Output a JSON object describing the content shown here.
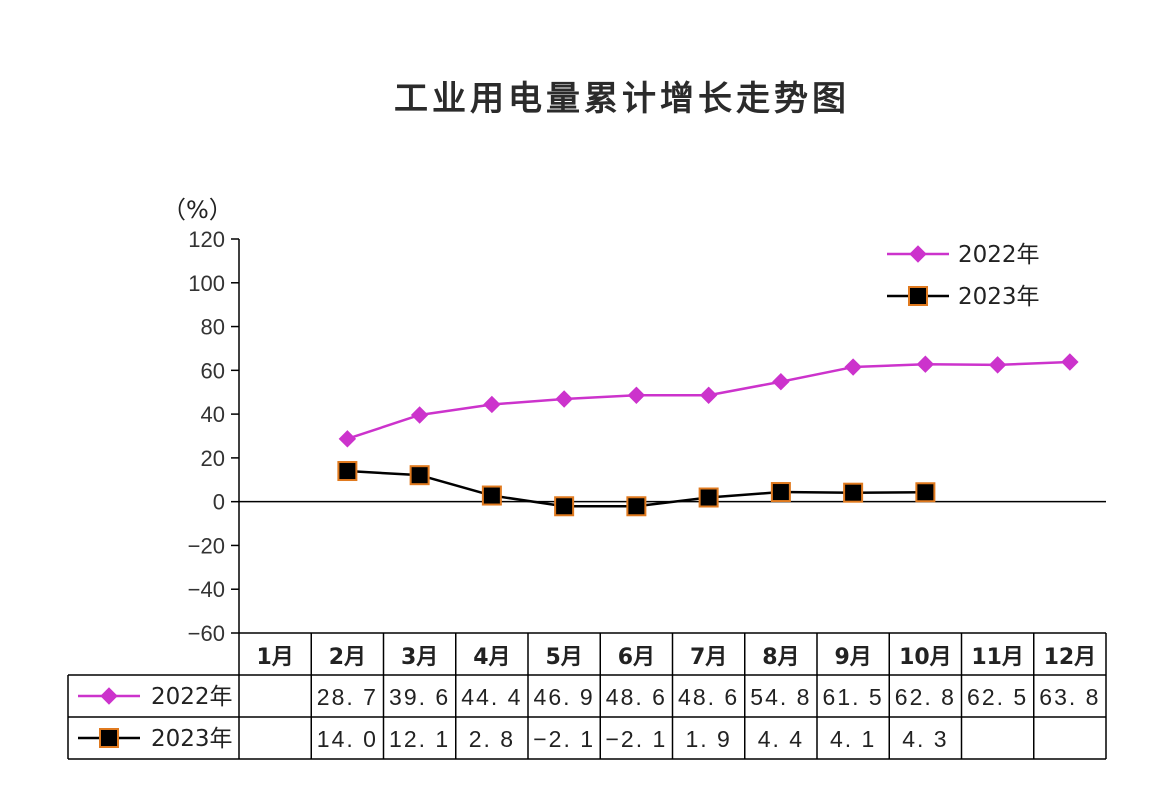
{
  "chart_data": {
    "type": "line",
    "title": "工业用电量累计增长走势图",
    "ylabel": "（%）",
    "ylim": [
      -60,
      120
    ],
    "yticks": [
      120,
      100,
      80,
      60,
      40,
      20,
      0,
      -20,
      -40,
      -60
    ],
    "categories": [
      "1月",
      "2月",
      "3月",
      "4月",
      "5月",
      "6月",
      "7月",
      "8月",
      "9月",
      "10月",
      "11月",
      "12月"
    ],
    "series": [
      {
        "name": "2022年",
        "color": "#cc33cc",
        "marker": "diamond",
        "values": [
          null,
          28.7,
          39.6,
          44.4,
          46.9,
          48.6,
          48.6,
          54.8,
          61.5,
          62.8,
          62.5,
          63.8
        ],
        "table_values": [
          "",
          "28. 7",
          "39. 6",
          "44. 4",
          "46. 9",
          "48. 6",
          "48. 6",
          "54. 8",
          "61. 5",
          "62. 8",
          "62. 5",
          "63. 8"
        ]
      },
      {
        "name": "2023年",
        "color": "#000000",
        "marker_edge": "#e07a1f",
        "marker": "square",
        "values": [
          null,
          14.0,
          12.1,
          2.8,
          -2.1,
          -2.1,
          1.9,
          4.4,
          4.1,
          4.3,
          null,
          null
        ],
        "table_values": [
          "",
          "14. 0",
          "12. 1",
          "2. 8",
          "−2. 1",
          "−2. 1",
          "1. 9",
          "4. 4",
          "4. 1",
          "4. 3",
          "",
          ""
        ]
      }
    ],
    "legend": "top-right",
    "grid": false
  }
}
